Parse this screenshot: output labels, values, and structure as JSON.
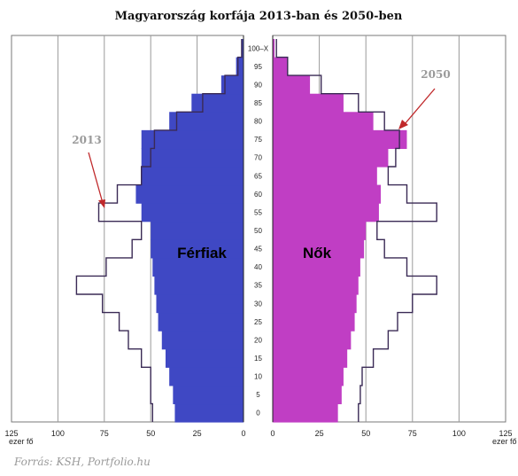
{
  "chart_data": {
    "type": "bar",
    "title": "Magyarország korfája 2013-ban  és 2050-ben",
    "unit_label": "ezer fő",
    "source": "Forrás: KSH, Portfolio.hu",
    "left_label": "Férfiak",
    "right_label": "Nők",
    "annotation_left": "2013",
    "annotation_right": "2050",
    "age_ticks": [
      "100–X",
      "95",
      "90",
      "85",
      "80",
      "75",
      "70",
      "65",
      "60",
      "55",
      "50",
      "45",
      "40",
      "35",
      "30",
      "25",
      "20",
      "15",
      "10",
      "5",
      "0"
    ],
    "x_ticks": [
      125,
      100,
      75,
      50,
      25,
      0
    ],
    "xlim": [
      0,
      125
    ],
    "colors": {
      "male_2050": "#3f48c4",
      "female_2050": "#c03ec4",
      "line_2013": "#3a2a55",
      "arrow": "#c0282a",
      "grid": "#9a9a9a"
    },
    "series": [
      {
        "name": "2050",
        "male": [
          [
            0,
            37
          ],
          [
            5,
            38
          ],
          [
            10,
            40
          ],
          [
            15,
            42
          ],
          [
            20,
            44
          ],
          [
            25,
            46
          ],
          [
            30,
            47
          ],
          [
            35,
            48
          ],
          [
            40,
            49
          ],
          [
            45,
            50
          ],
          [
            50,
            50
          ],
          [
            55,
            55
          ],
          [
            60,
            58
          ],
          [
            65,
            55
          ],
          [
            70,
            55
          ],
          [
            75,
            55
          ],
          [
            80,
            40
          ],
          [
            85,
            28
          ],
          [
            90,
            12
          ],
          [
            95,
            4
          ],
          [
            100,
            1
          ]
        ],
        "female": [
          [
            0,
            35
          ],
          [
            5,
            37
          ],
          [
            10,
            38
          ],
          [
            15,
            40
          ],
          [
            20,
            42
          ],
          [
            25,
            44
          ],
          [
            30,
            45
          ],
          [
            35,
            46
          ],
          [
            40,
            47
          ],
          [
            45,
            49
          ],
          [
            50,
            50
          ],
          [
            55,
            57
          ],
          [
            60,
            58
          ],
          [
            65,
            56
          ],
          [
            70,
            62
          ],
          [
            75,
            72
          ],
          [
            80,
            54
          ],
          [
            85,
            38
          ],
          [
            90,
            20
          ],
          [
            95,
            8
          ],
          [
            100,
            1
          ]
        ]
      },
      {
        "name": "2013",
        "male": [
          [
            0,
            49
          ],
          [
            5,
            50
          ],
          [
            10,
            50
          ],
          [
            15,
            55
          ],
          [
            20,
            62
          ],
          [
            25,
            67
          ],
          [
            30,
            76
          ],
          [
            35,
            90
          ],
          [
            40,
            74
          ],
          [
            45,
            60
          ],
          [
            50,
            55
          ],
          [
            55,
            78
          ],
          [
            60,
            68
          ],
          [
            65,
            55
          ],
          [
            70,
            50
          ],
          [
            75,
            48
          ],
          [
            80,
            36
          ],
          [
            85,
            22
          ],
          [
            90,
            10
          ],
          [
            95,
            3
          ],
          [
            100,
            1
          ]
        ],
        "female": [
          [
            0,
            46
          ],
          [
            5,
            47
          ],
          [
            10,
            48
          ],
          [
            15,
            54
          ],
          [
            20,
            62
          ],
          [
            25,
            67
          ],
          [
            30,
            75
          ],
          [
            35,
            88
          ],
          [
            40,
            72
          ],
          [
            45,
            60
          ],
          [
            50,
            56
          ],
          [
            55,
            88
          ],
          [
            60,
            72
          ],
          [
            65,
            62
          ],
          [
            70,
            66
          ],
          [
            75,
            68
          ],
          [
            80,
            60
          ],
          [
            85,
            46
          ],
          [
            90,
            26
          ],
          [
            95,
            8
          ],
          [
            100,
            2
          ]
        ]
      }
    ]
  }
}
